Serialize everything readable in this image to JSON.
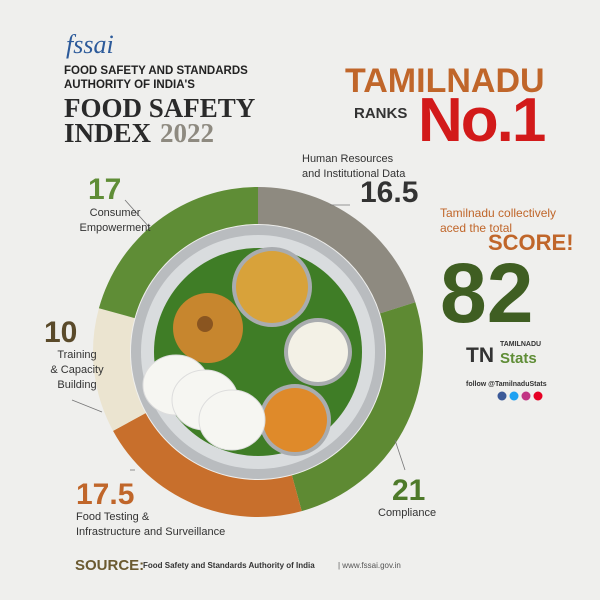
{
  "header": {
    "logo": "fssai",
    "authority": "FOOD SAFETY AND STANDARDS\nAUTHORITY OF INDIA'S",
    "title": "FOOD SAFETY\nINDEX",
    "year": "2022"
  },
  "rank": {
    "state": "TAMILNADU",
    "ranks": "RANKS",
    "position": "No.1"
  },
  "score": {
    "text": "Tamilnadu collectively\naced the total",
    "highlight": "SCORE!",
    "total": 82
  },
  "brand": {
    "small": "TAMILNADU",
    "tn": "TN",
    "stats": "Stats",
    "follow": "follow @TamilnaduStats"
  },
  "source": {
    "label": "SOURCE:",
    "text": "Food Safety and Standards Authority of India",
    "url": "| www.fssai.gov.in"
  },
  "chart_data": {
    "type": "donut",
    "categories": [
      "Human Resources\nand Institutional Data",
      "Compliance",
      "Food Testing &\nInfrastructure and Surveillance",
      "Training\n& Capacity\nBuilding",
      "Consumer\nEmpowerment"
    ],
    "values": [
      16.5,
      21,
      17.5,
      10,
      17
    ],
    "colors": [
      "#8e8a80",
      "#5e8a33",
      "#c86f2c",
      "#ebe4d0",
      "#5f8d36"
    ]
  }
}
